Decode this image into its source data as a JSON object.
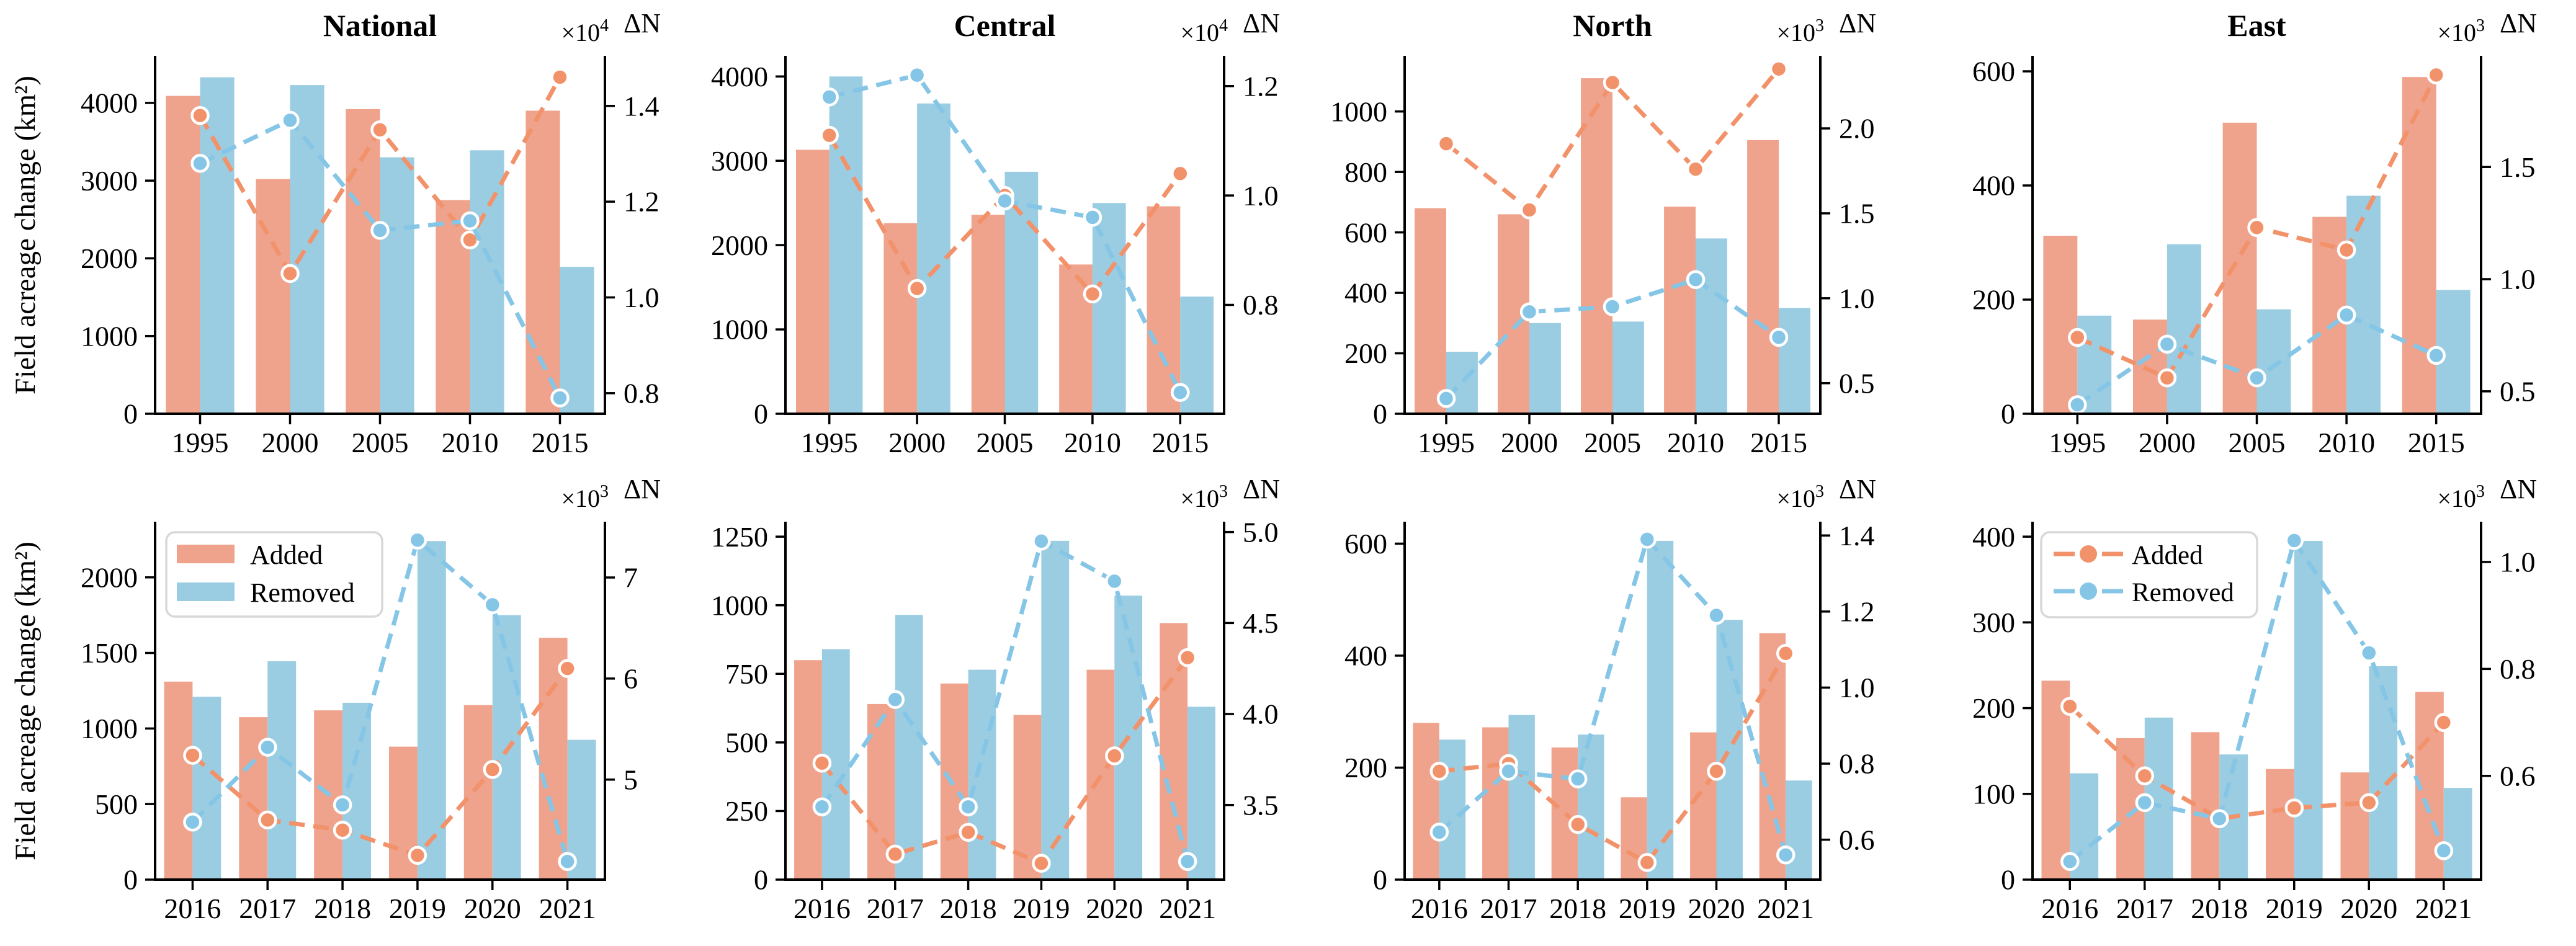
{
  "figure": {
    "ylabel": "Field acreage change (km²)",
    "dn_label": "ΔN",
    "scale_prefix": "×10",
    "legend": {
      "added_label": "Added",
      "removed_label": "Removed"
    },
    "colors": {
      "bar_added": "#efa28c",
      "bar_removed": "#9bcde2",
      "line_added": "#f2926b",
      "line_removed": "#85c5e6",
      "axis": "#000000",
      "text": "#000000",
      "legend_border": "#d8d8d8",
      "marker_edge": "#ffffff"
    },
    "column_titles": [
      "National",
      "Central",
      "North",
      "East"
    ]
  },
  "chart_data": [
    {
      "type": "bar+line",
      "region": "National",
      "title": "National",
      "row": 0,
      "col": 0,
      "categories": [
        "1995",
        "2000",
        "2005",
        "2010",
        "2015"
      ],
      "series": [
        {
          "name": "Added",
          "kind": "bar",
          "axis": "left",
          "values": [
            4090,
            3020,
            3920,
            2750,
            3900
          ]
        },
        {
          "name": "Removed",
          "kind": "bar",
          "axis": "left",
          "values": [
            4330,
            4230,
            3300,
            3390,
            1890
          ]
        },
        {
          "name": "Added",
          "kind": "line",
          "axis": "right",
          "values": [
            1.38,
            1.05,
            1.35,
            1.12,
            1.46
          ]
        },
        {
          "name": "Removed",
          "kind": "line",
          "axis": "right",
          "values": [
            1.28,
            1.37,
            1.14,
            1.16,
            0.79
          ]
        }
      ],
      "left_axis": {
        "ticks": [
          "0",
          "1000",
          "2000",
          "3000",
          "4000"
        ],
        "tick_values": [
          0,
          1000,
          2000,
          3000,
          4000
        ],
        "lim": [
          0,
          4590
        ]
      },
      "right_axis": {
        "ticks": [
          "0.8",
          "1.0",
          "1.2",
          "1.4"
        ],
        "tick_values": [
          0.8,
          1.0,
          1.2,
          1.4
        ],
        "lim": [
          0.757,
          1.502
        ],
        "exponent": "4"
      },
      "legend": null
    },
    {
      "type": "bar+line",
      "region": "Central",
      "title": "Central",
      "row": 0,
      "col": 1,
      "categories": [
        "1995",
        "2000",
        "2005",
        "2010",
        "2015"
      ],
      "series": [
        {
          "name": "Added",
          "kind": "bar",
          "axis": "left",
          "values": [
            3130,
            2260,
            2360,
            1770,
            2460
          ]
        },
        {
          "name": "Removed",
          "kind": "bar",
          "axis": "left",
          "values": [
            4000,
            3680,
            2870,
            2500,
            1390
          ]
        },
        {
          "name": "Added",
          "kind": "line",
          "axis": "right",
          "values": [
            1.11,
            0.83,
            1.0,
            0.82,
            1.04
          ]
        },
        {
          "name": "Removed",
          "kind": "line",
          "axis": "right",
          "values": [
            1.18,
            1.22,
            0.99,
            0.96,
            0.64
          ]
        }
      ],
      "left_axis": {
        "ticks": [
          "0",
          "1000",
          "2000",
          "3000",
          "4000"
        ],
        "tick_values": [
          0,
          1000,
          2000,
          3000,
          4000
        ],
        "lim": [
          0,
          4230
        ]
      },
      "right_axis": {
        "ticks": [
          "0.8",
          "1.0",
          "1.2"
        ],
        "tick_values": [
          0.8,
          1.0,
          1.2
        ],
        "lim": [
          0.601,
          1.253
        ],
        "exponent": "4"
      },
      "legend": null
    },
    {
      "type": "bar+line",
      "region": "North",
      "title": "North",
      "row": 0,
      "col": 2,
      "categories": [
        "1995",
        "2000",
        "2005",
        "2010",
        "2015"
      ],
      "series": [
        {
          "name": "Added",
          "kind": "bar",
          "axis": "left",
          "values": [
            680,
            660,
            1110,
            685,
            905
          ]
        },
        {
          "name": "Removed",
          "kind": "bar",
          "axis": "left",
          "values": [
            205,
            300,
            305,
            580,
            350
          ]
        },
        {
          "name": "Added",
          "kind": "line",
          "axis": "right",
          "values": [
            1.91,
            1.52,
            2.27,
            1.76,
            2.35
          ]
        },
        {
          "name": "Removed",
          "kind": "line",
          "axis": "right",
          "values": [
            0.41,
            0.92,
            0.95,
            1.11,
            0.77
          ]
        }
      ],
      "left_axis": {
        "ticks": [
          "0",
          "200",
          "400",
          "600",
          "800",
          "1000"
        ],
        "tick_values": [
          0,
          200,
          400,
          600,
          800,
          1000
        ],
        "lim": [
          0,
          1180
        ]
      },
      "right_axis": {
        "ticks": [
          "0.5",
          "1.0",
          "1.5",
          "2.0"
        ],
        "tick_values": [
          0.5,
          1.0,
          1.5,
          2.0
        ],
        "lim": [
          0.32,
          2.42
        ],
        "exponent": "3"
      },
      "legend": null
    },
    {
      "type": "bar+line",
      "region": "East",
      "title": "East",
      "row": 0,
      "col": 3,
      "categories": [
        "1995",
        "2000",
        "2005",
        "2010",
        "2015"
      ],
      "series": [
        {
          "name": "Added",
          "kind": "bar",
          "axis": "left",
          "values": [
            312,
            165,
            510,
            345,
            590
          ]
        },
        {
          "name": "Removed",
          "kind": "bar",
          "axis": "left",
          "values": [
            172,
            297,
            183,
            382,
            217
          ]
        },
        {
          "name": "Added",
          "kind": "line",
          "axis": "right",
          "values": [
            0.74,
            0.56,
            1.23,
            1.13,
            1.91
          ]
        },
        {
          "name": "Removed",
          "kind": "line",
          "axis": "right",
          "values": [
            0.44,
            0.71,
            0.56,
            0.84,
            0.66
          ]
        }
      ],
      "left_axis": {
        "ticks": [
          "0",
          "200",
          "400",
          "600"
        ],
        "tick_values": [
          0,
          200,
          400,
          600
        ],
        "lim": [
          0,
          625
        ]
      },
      "right_axis": {
        "ticks": [
          "0.5",
          "1.0",
          "1.5"
        ],
        "tick_values": [
          0.5,
          1.0,
          1.5
        ],
        "lim": [
          0.4,
          1.99
        ],
        "exponent": "3"
      },
      "legend": null
    },
    {
      "type": "bar+line",
      "region": "National",
      "title": "",
      "row": 1,
      "col": 0,
      "categories": [
        "2016",
        "2017",
        "2018",
        "2019",
        "2020",
        "2021"
      ],
      "series": [
        {
          "name": "Added",
          "kind": "bar",
          "axis": "left",
          "values": [
            1310,
            1075,
            1120,
            880,
            1155,
            1600
          ]
        },
        {
          "name": "Removed",
          "kind": "bar",
          "axis": "left",
          "values": [
            1210,
            1445,
            1170,
            2240,
            1750,
            925
          ]
        },
        {
          "name": "Added",
          "kind": "line",
          "axis": "right",
          "values": [
            5.24,
            4.6,
            4.5,
            4.25,
            5.1,
            6.1
          ]
        },
        {
          "name": "Removed",
          "kind": "line",
          "axis": "right",
          "values": [
            4.58,
            5.32,
            4.75,
            7.37,
            6.73,
            4.19
          ]
        }
      ],
      "left_axis": {
        "ticks": [
          "0",
          "500",
          "1000",
          "1500",
          "2000"
        ],
        "tick_values": [
          0,
          500,
          1000,
          1500,
          2000
        ],
        "lim": [
          0,
          2360
        ]
      },
      "right_axis": {
        "ticks": [
          "5",
          "6",
          "7"
        ],
        "tick_values": [
          5,
          6,
          7
        ],
        "lim": [
          4.01,
          7.54
        ],
        "exponent": "3"
      },
      "legend": "patch"
    },
    {
      "type": "bar+line",
      "region": "Central",
      "title": "",
      "row": 1,
      "col": 1,
      "categories": [
        "2016",
        "2017",
        "2018",
        "2019",
        "2020",
        "2021"
      ],
      "series": [
        {
          "name": "Added",
          "kind": "bar",
          "axis": "left",
          "values": [
            800,
            640,
            715,
            600,
            765,
            935
          ]
        },
        {
          "name": "Removed",
          "kind": "bar",
          "axis": "left",
          "values": [
            840,
            965,
            765,
            1235,
            1035,
            630
          ]
        },
        {
          "name": "Added",
          "kind": "line",
          "axis": "right",
          "values": [
            3.73,
            3.23,
            3.35,
            3.18,
            3.77,
            4.31
          ]
        },
        {
          "name": "Removed",
          "kind": "line",
          "axis": "right",
          "values": [
            3.49,
            4.08,
            3.49,
            4.95,
            4.73,
            3.19
          ]
        }
      ],
      "left_axis": {
        "ticks": [
          "0",
          "250",
          "500",
          "750",
          "1000",
          "1250"
        ],
        "tick_values": [
          0,
          250,
          500,
          750,
          1000,
          1250
        ],
        "lim": [
          0,
          1300
        ]
      },
      "right_axis": {
        "ticks": [
          "3.5",
          "4.0",
          "4.5",
          "5.0"
        ],
        "tick_values": [
          3.5,
          4.0,
          4.5,
          5.0
        ],
        "lim": [
          3.09,
          5.05
        ],
        "exponent": "3"
      },
      "legend": null
    },
    {
      "type": "bar+line",
      "region": "North",
      "title": "",
      "row": 1,
      "col": 2,
      "categories": [
        "2016",
        "2017",
        "2018",
        "2019",
        "2020",
        "2021"
      ],
      "series": [
        {
          "name": "Added",
          "kind": "bar",
          "axis": "left",
          "values": [
            280,
            272,
            236,
            147,
            263,
            440
          ]
        },
        {
          "name": "Removed",
          "kind": "bar",
          "axis": "left",
          "values": [
            250,
            294,
            259,
            605,
            464,
            177
          ]
        },
        {
          "name": "Added",
          "kind": "line",
          "axis": "right",
          "values": [
            0.78,
            0.8,
            0.64,
            0.54,
            0.78,
            1.09
          ]
        },
        {
          "name": "Removed",
          "kind": "line",
          "axis": "right",
          "values": [
            0.62,
            0.78,
            0.76,
            1.39,
            1.19,
            0.56
          ]
        }
      ],
      "left_axis": {
        "ticks": [
          "0",
          "200",
          "400",
          "600"
        ],
        "tick_values": [
          0,
          200,
          400,
          600
        ],
        "lim": [
          0,
          637
        ]
      },
      "right_axis": {
        "ticks": [
          "0.6",
          "0.8",
          "1.0",
          "1.2",
          "1.4"
        ],
        "tick_values": [
          0.6,
          0.8,
          1.0,
          1.2,
          1.4
        ],
        "lim": [
          0.495,
          1.433
        ],
        "exponent": "3"
      },
      "legend": null
    },
    {
      "type": "bar+line",
      "region": "East",
      "title": "",
      "row": 1,
      "col": 3,
      "categories": [
        "2016",
        "2017",
        "2018",
        "2019",
        "2020",
        "2021"
      ],
      "series": [
        {
          "name": "Added",
          "kind": "bar",
          "axis": "left",
          "values": [
            232,
            165,
            172,
            129,
            125,
            219
          ]
        },
        {
          "name": "Removed",
          "kind": "bar",
          "axis": "left",
          "values": [
            124,
            189,
            146,
            395,
            249,
            107
          ]
        },
        {
          "name": "Added",
          "kind": "line",
          "axis": "right",
          "values": [
            0.73,
            0.6,
            0.52,
            0.54,
            0.55,
            0.7
          ]
        },
        {
          "name": "Removed",
          "kind": "line",
          "axis": "right",
          "values": [
            0.44,
            0.55,
            0.52,
            1.04,
            0.83,
            0.46
          ]
        }
      ],
      "left_axis": {
        "ticks": [
          "0",
          "100",
          "200",
          "300",
          "400"
        ],
        "tick_values": [
          0,
          100,
          200,
          300,
          400
        ],
        "lim": [
          0,
          416
        ]
      },
      "right_axis": {
        "ticks": [
          "0.6",
          "0.8",
          "1.0"
        ],
        "tick_values": [
          0.6,
          0.8,
          1.0
        ],
        "lim": [
          0.406,
          1.073
        ],
        "exponent": "3"
      },
      "legend": "line"
    }
  ]
}
